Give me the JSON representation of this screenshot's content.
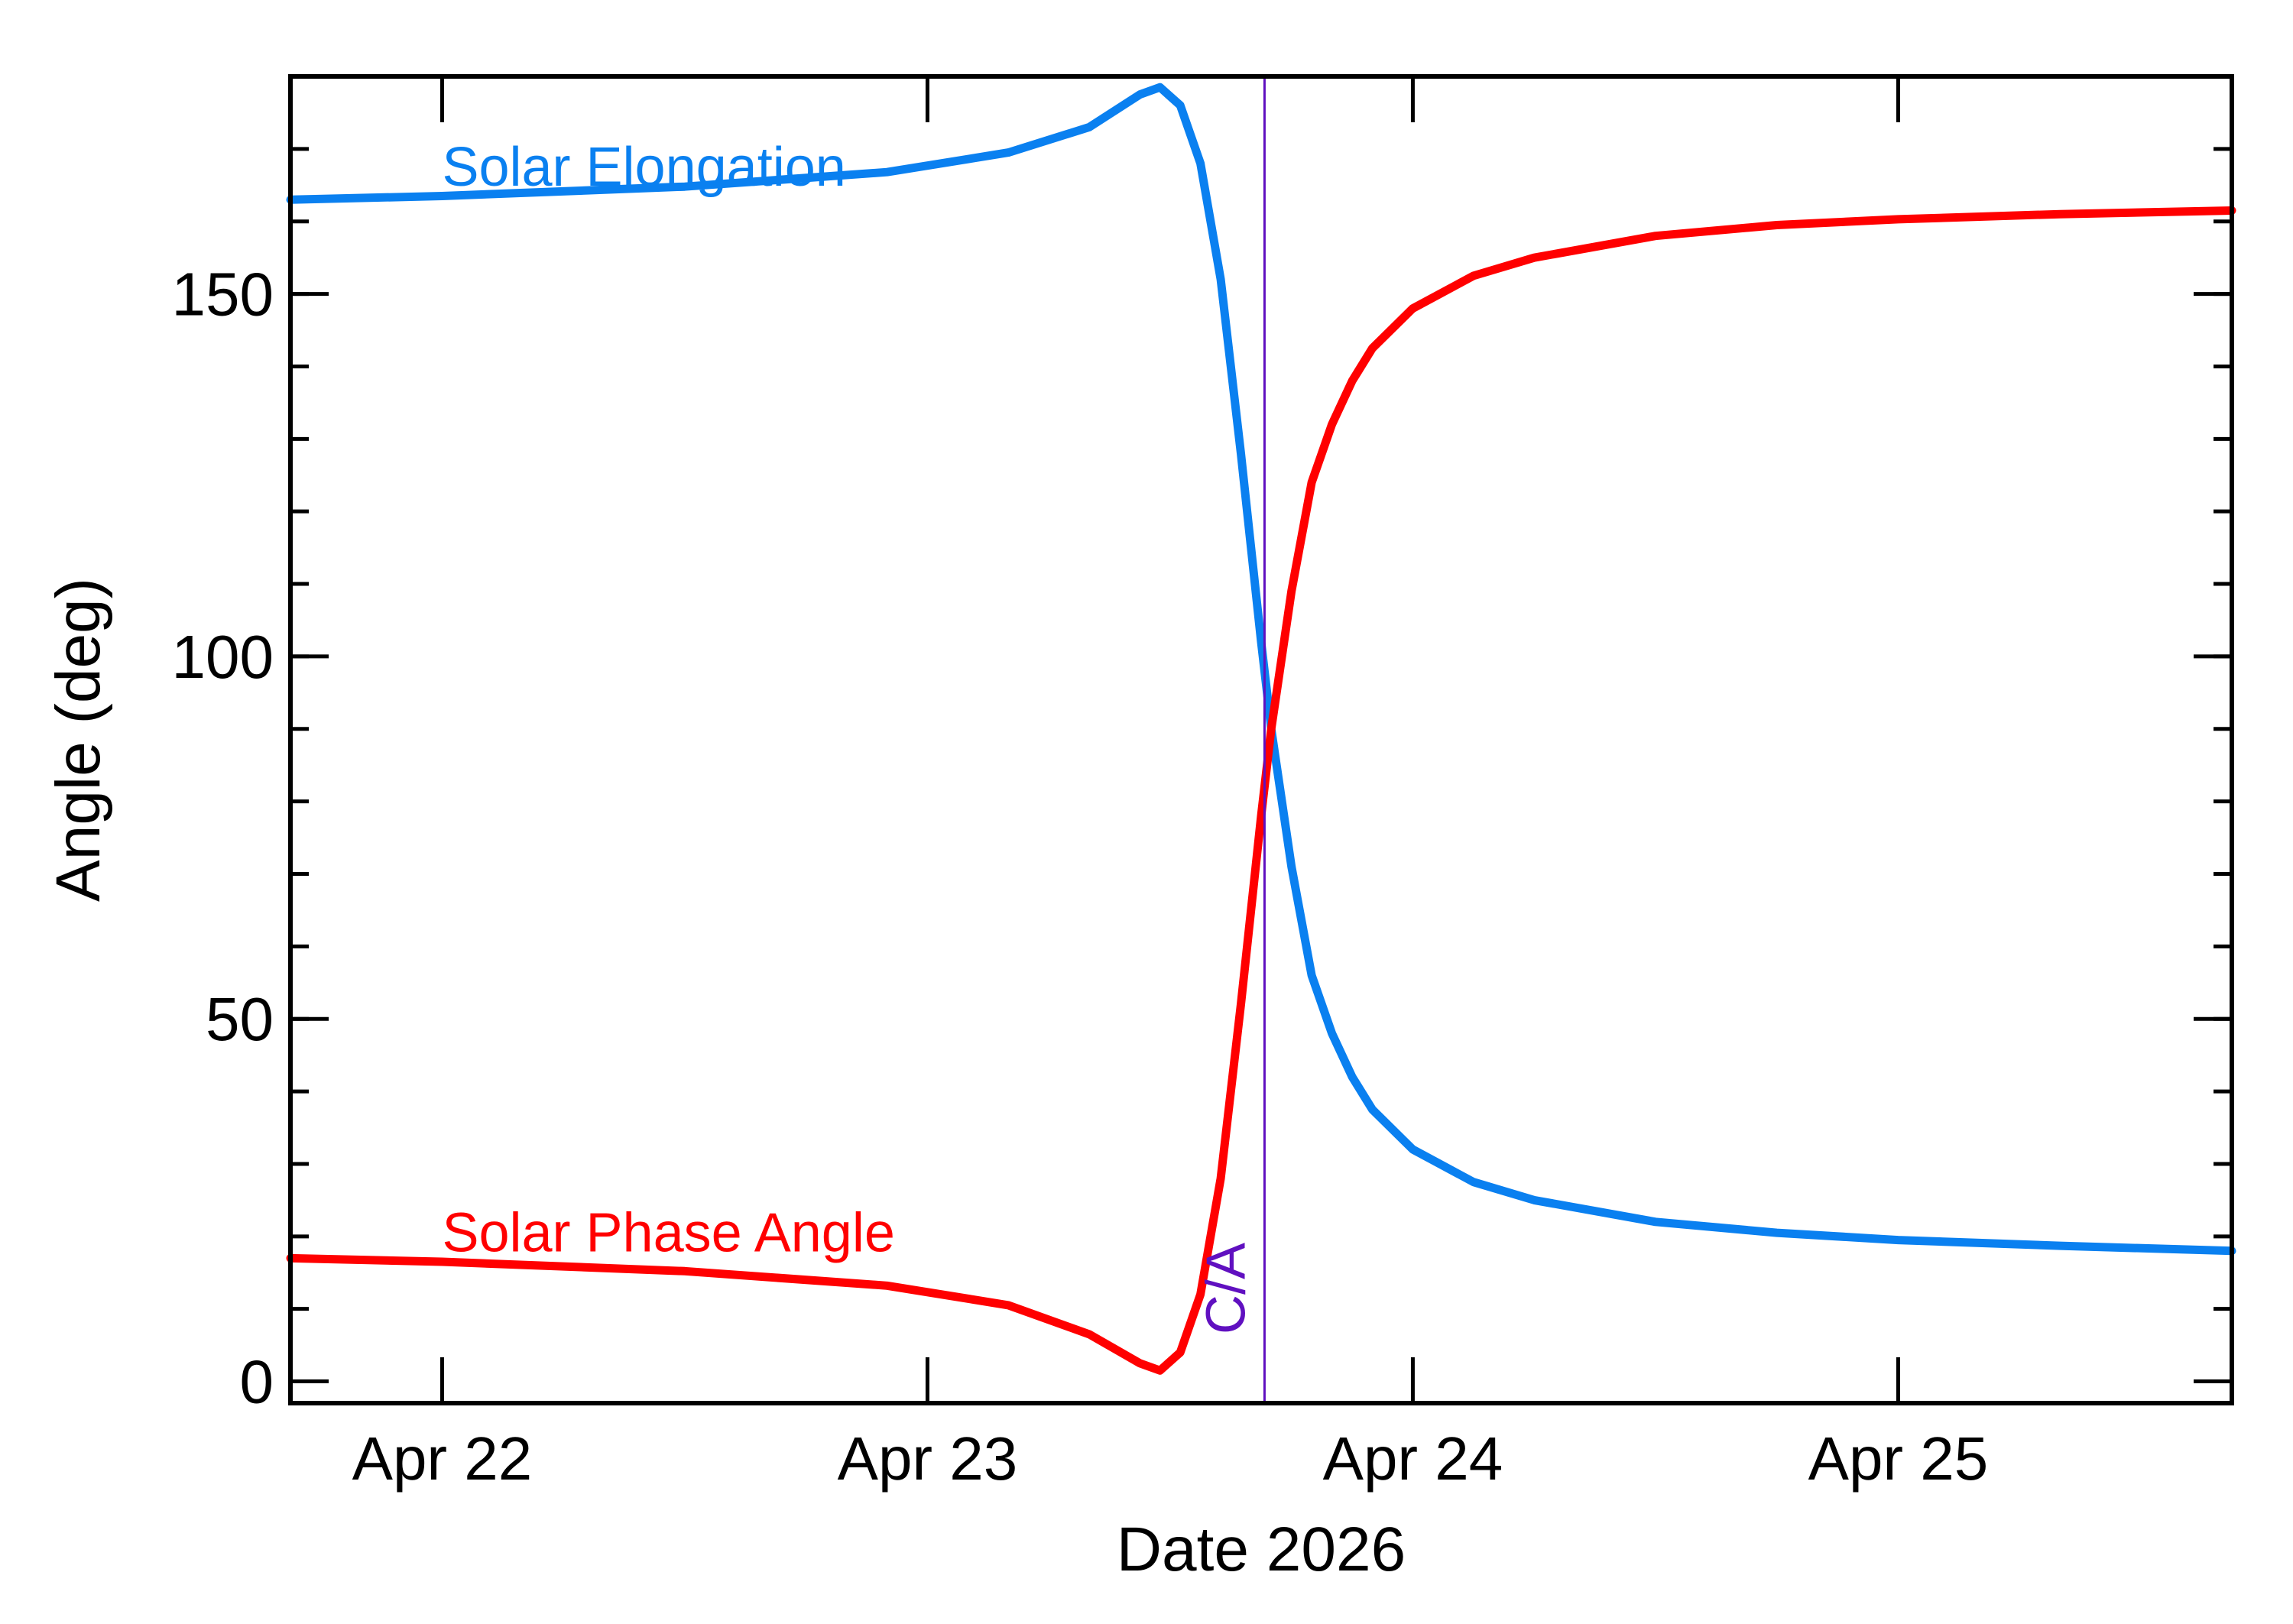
{
  "chart_data": {
    "type": "line",
    "title": "",
    "xlabel": "Date 2026",
    "ylabel": "Angle (deg)",
    "xlim": [
      "2026-04-21T16:30",
      "2026-04-25T16:30"
    ],
    "ylim": [
      -3,
      180
    ],
    "x_ticks": [
      {
        "date": "2026-04-22",
        "label": "Apr 22"
      },
      {
        "date": "2026-04-23",
        "label": "Apr 23"
      },
      {
        "date": "2026-04-24",
        "label": "Apr 24"
      },
      {
        "date": "2026-04-25",
        "label": "Apr 25"
      }
    ],
    "y_ticks": [
      {
        "value": 0,
        "label": "0"
      },
      {
        "value": 50,
        "label": "50"
      },
      {
        "value": 100,
        "label": "100"
      },
      {
        "value": 150,
        "label": "150"
      }
    ],
    "y_minor_step": 10,
    "grid": false,
    "closest_approach": {
      "label": "C/A",
      "date": "2026-04-23T16:40",
      "color": "#6010c0"
    },
    "series": [
      {
        "name": "Solar Elongation",
        "color": "#0a80f0",
        "points": [
          [
            "2026-04-21T16:30",
            163
          ],
          [
            "2026-04-22T00:00",
            163.5
          ],
          [
            "2026-04-22T12:00",
            164.8
          ],
          [
            "2026-04-22T22:00",
            166.8
          ],
          [
            "2026-04-23T04:00",
            169.5
          ],
          [
            "2026-04-23T08:00",
            173
          ],
          [
            "2026-04-23T10:30",
            177.5
          ],
          [
            "2026-04-23T11:30",
            178.5
          ],
          [
            "2026-04-23T12:30",
            176
          ],
          [
            "2026-04-23T13:30",
            168
          ],
          [
            "2026-04-23T14:30",
            152
          ],
          [
            "2026-04-23T15:30",
            128
          ],
          [
            "2026-04-23T16:30",
            102
          ],
          [
            "2026-04-23T17:00",
            90
          ],
          [
            "2026-04-23T18:00",
            71
          ],
          [
            "2026-04-23T19:00",
            56
          ],
          [
            "2026-04-23T20:00",
            48
          ],
          [
            "2026-04-23T21:00",
            42
          ],
          [
            "2026-04-23T22:00",
            37.5
          ],
          [
            "2026-04-24T00:00",
            32
          ],
          [
            "2026-04-24T03:00",
            27.5
          ],
          [
            "2026-04-24T06:00",
            25
          ],
          [
            "2026-04-24T12:00",
            22
          ],
          [
            "2026-04-24T18:00",
            20.5
          ],
          [
            "2026-04-25T00:00",
            19.5
          ],
          [
            "2026-04-25T08:00",
            18.7
          ],
          [
            "2026-04-25T16:30",
            18
          ]
        ]
      },
      {
        "name": "Solar Phase Angle",
        "color": "#ff0000",
        "points": [
          [
            "2026-04-21T16:30",
            17
          ],
          [
            "2026-04-22T00:00",
            16.5
          ],
          [
            "2026-04-22T12:00",
            15.2
          ],
          [
            "2026-04-22T22:00",
            13.2
          ],
          [
            "2026-04-23T04:00",
            10.5
          ],
          [
            "2026-04-23T08:00",
            6.5
          ],
          [
            "2026-04-23T10:30",
            2.5
          ],
          [
            "2026-04-23T11:30",
            1.5
          ],
          [
            "2026-04-23T12:30",
            4
          ],
          [
            "2026-04-23T13:30",
            12
          ],
          [
            "2026-04-23T14:30",
            28
          ],
          [
            "2026-04-23T15:30",
            52
          ],
          [
            "2026-04-23T16:30",
            78
          ],
          [
            "2026-04-23T17:00",
            90
          ],
          [
            "2026-04-23T18:00",
            109
          ],
          [
            "2026-04-23T19:00",
            124
          ],
          [
            "2026-04-23T20:00",
            132
          ],
          [
            "2026-04-23T21:00",
            138
          ],
          [
            "2026-04-23T22:00",
            142.5
          ],
          [
            "2026-04-24T00:00",
            148
          ],
          [
            "2026-04-24T03:00",
            152.5
          ],
          [
            "2026-04-24T06:00",
            155
          ],
          [
            "2026-04-24T12:00",
            158
          ],
          [
            "2026-04-24T18:00",
            159.5
          ],
          [
            "2026-04-25T00:00",
            160.3
          ],
          [
            "2026-04-25T08:00",
            161
          ],
          [
            "2026-04-25T16:30",
            161.5
          ]
        ]
      }
    ]
  }
}
